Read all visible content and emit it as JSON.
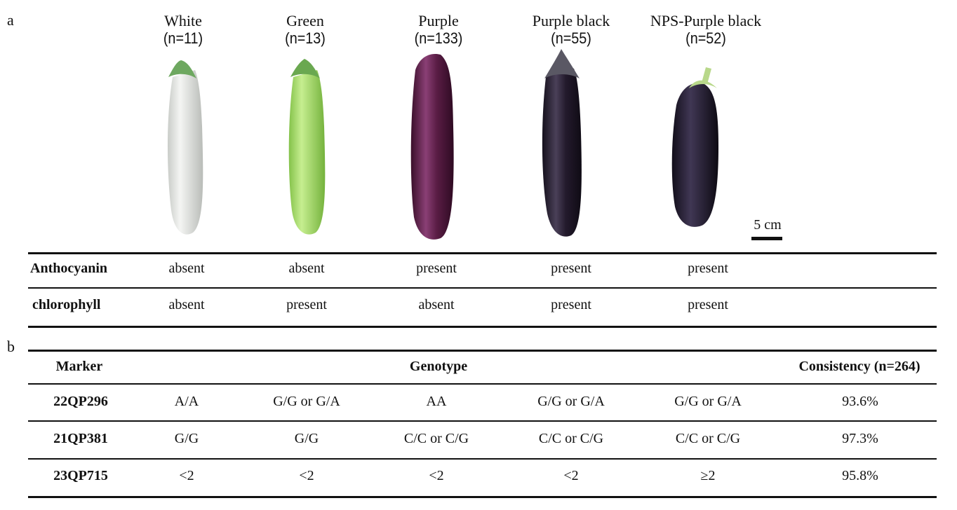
{
  "panel_a_label": "a",
  "panel_b_label": "b",
  "fruits": [
    {
      "name": "White",
      "count": "(n=11)",
      "color": "#e6e8e4"
    },
    {
      "name": "Green",
      "count": "(n=13)",
      "color": "#a6dc6a"
    },
    {
      "name": "Purple",
      "count": "(n=133)",
      "color": "#5a1d45"
    },
    {
      "name": "Purple black",
      "count": "(n=55)",
      "color": "#231a2c"
    },
    {
      "name": "NPS-Purple black",
      "count": "(n=52)",
      "color": "#1d1628"
    }
  ],
  "scale_bar": "5 cm",
  "pigment_table": {
    "rows": [
      {
        "label": "Anthocyanin",
        "values": [
          "absent",
          "absent",
          "present",
          "present",
          "present"
        ]
      },
      {
        "label": "chlorophyll",
        "values": [
          "absent",
          "present",
          "absent",
          "present",
          "present"
        ]
      }
    ]
  },
  "marker_table": {
    "headers": {
      "marker": "Marker",
      "genotype": "Genotype",
      "consistency": "Consistency (n=264)"
    },
    "rows": [
      {
        "marker": "22QP296",
        "values": [
          "A/A",
          "G/G or G/A",
          "AA",
          "G/G or G/A",
          "G/G or G/A"
        ],
        "consistency": "93.6%"
      },
      {
        "marker": "21QP381",
        "values": [
          "G/G",
          "G/G",
          "C/C or C/G",
          "C/C or C/G",
          "C/C or C/G"
        ],
        "consistency": "97.3%"
      },
      {
        "marker": "23QP715",
        "values": [
          "<2",
          "<2",
          "<2",
          "<2",
          "≥2"
        ],
        "consistency": "95.8%"
      }
    ]
  }
}
